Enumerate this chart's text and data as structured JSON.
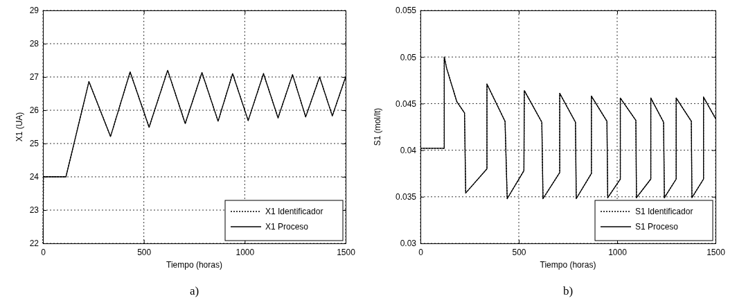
{
  "chart_data": [
    {
      "type": "line",
      "xlabel": "Tiempo (horas)",
      "ylabel": "X1 (UA)",
      "xlim": [
        0,
        1500
      ],
      "xticks": [
        0,
        500,
        1000,
        1500
      ],
      "ylim": [
        22,
        29
      ],
      "yticks": [
        22,
        23,
        24,
        25,
        26,
        27,
        28,
        29
      ],
      "grid": true,
      "legend": "bottom right",
      "annotations": [
        "a)"
      ],
      "series": [
        {
          "name": "X1 Proceso",
          "color": "#000000",
          "line_style": "solid",
          "x": [
            0,
            114,
            228,
            335,
            432,
            526,
            618,
            705,
            788,
            868,
            940,
            1017,
            1093,
            1165,
            1237,
            1302,
            1371,
            1434,
            1500
          ],
          "values": [
            24,
            24,
            26.86,
            25.21,
            27.15,
            25.49,
            27.2,
            25.6,
            27.13,
            25.67,
            27.1,
            25.69,
            27.1,
            25.77,
            27.07,
            25.8,
            27.0,
            25.83,
            27.0
          ]
        },
        {
          "name": "X1 Identificador",
          "color": "#000000",
          "line_style": "dotted",
          "x": [
            0,
            3,
            114,
            228,
            335,
            432,
            526,
            618,
            705,
            788,
            868,
            940,
            1017,
            1093,
            1165,
            1237,
            1302,
            1371,
            1434,
            1500
          ],
          "values": [
            22,
            24,
            24,
            26.86,
            25.21,
            27.15,
            25.49,
            27.2,
            25.6,
            27.13,
            25.67,
            27.1,
            25.69,
            27.1,
            25.77,
            27.07,
            25.8,
            27.0,
            25.83,
            27.0
          ]
        }
      ]
    },
    {
      "type": "line",
      "xlabel": "Tiempo (horas)",
      "ylabel": "S1 (mol/lt)",
      "xlim": [
        0,
        1500
      ],
      "xticks": [
        0,
        500,
        1000,
        1500
      ],
      "ylim": [
        0.03,
        0.055
      ],
      "yticks": [
        0.03,
        0.035,
        0.04,
        0.045,
        0.05,
        0.055
      ],
      "grid": true,
      "legend": "bottom right",
      "annotations": [
        "b)"
      ],
      "series": [
        {
          "name": "S1 Proceso",
          "color": "#000000",
          "line_style": "solid",
          "x": [
            0,
            121,
            121,
            133,
            185,
            224,
            230,
            338,
            338,
            430,
            441,
            526,
            528,
            617,
            623,
            708,
            708,
            788,
            792,
            869,
            869,
            948,
            952,
            1016,
            1016,
            1095,
            1098,
            1171,
            1171,
            1236,
            1240,
            1300,
            1300,
            1377,
            1380,
            1439,
            1439,
            1500
          ],
          "values": [
            0.0402,
            0.0402,
            0.05,
            0.0488,
            0.0452,
            0.044,
            0.0354,
            0.038,
            0.0471,
            0.0431,
            0.0348,
            0.0378,
            0.0464,
            0.043,
            0.0348,
            0.0376,
            0.0461,
            0.043,
            0.0348,
            0.0375,
            0.0458,
            0.0431,
            0.0349,
            0.0369,
            0.0456,
            0.0432,
            0.0349,
            0.0369,
            0.0456,
            0.043,
            0.0349,
            0.0369,
            0.0456,
            0.0431,
            0.0349,
            0.0369,
            0.0457,
            0.0434
          ]
        },
        {
          "name": "S1 Identificador",
          "color": "#000000",
          "line_style": "dotted",
          "x": [
            0,
            121,
            121,
            133,
            185,
            224,
            230,
            338,
            338,
            430,
            441,
            526,
            528,
            617,
            623,
            708,
            708,
            788,
            792,
            869,
            869,
            948,
            952,
            1016,
            1016,
            1095,
            1098,
            1171,
            1171,
            1236,
            1240,
            1300,
            1300,
            1377,
            1380,
            1439,
            1439,
            1500
          ],
          "values": [
            0.0402,
            0.0402,
            0.05,
            0.0488,
            0.0452,
            0.044,
            0.0354,
            0.038,
            0.0471,
            0.0431,
            0.0348,
            0.0378,
            0.0464,
            0.043,
            0.0348,
            0.0376,
            0.0461,
            0.043,
            0.0348,
            0.0375,
            0.0458,
            0.0431,
            0.0349,
            0.0369,
            0.0456,
            0.0432,
            0.0349,
            0.0369,
            0.0456,
            0.043,
            0.0349,
            0.0369,
            0.0456,
            0.0431,
            0.0349,
            0.0369,
            0.0457,
            0.0434
          ]
        }
      ]
    }
  ]
}
